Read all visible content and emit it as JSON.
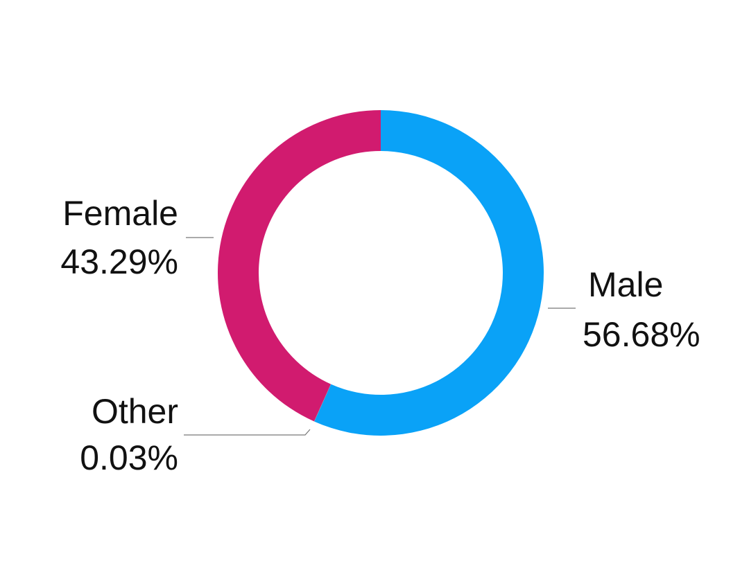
{
  "chart_data": {
    "type": "donut",
    "categories": [
      "Male",
      "Other",
      "Female"
    ],
    "values": [
      56.68,
      0.03,
      43.29
    ],
    "value_labels": [
      "56.68%",
      "0.03%",
      "43.29%"
    ],
    "colors": [
      "#0aa2f7",
      "#8a8a8a",
      "#d11b6f"
    ]
  }
}
